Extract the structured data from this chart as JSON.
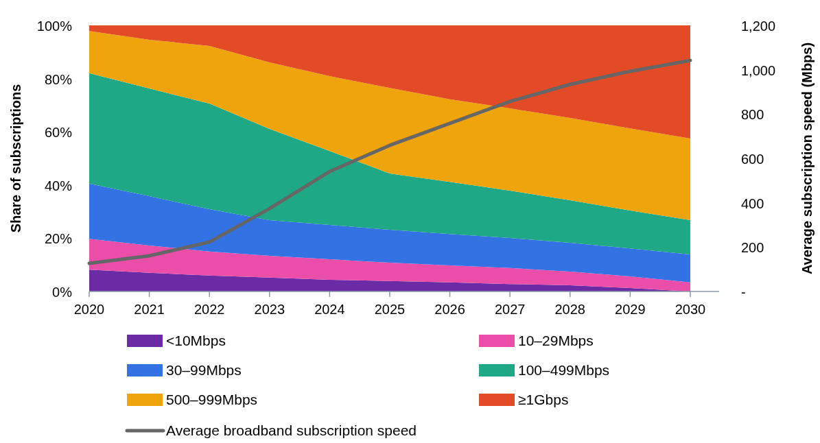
{
  "chart_data": {
    "type": "area",
    "stacked": true,
    "x": [
      2020,
      2021,
      2022,
      2023,
      2024,
      2025,
      2026,
      2027,
      2028,
      2029,
      2030
    ],
    "xlim": [
      2020,
      2030.48
    ],
    "xticks": [
      2020,
      2021,
      2022,
      2023,
      2024,
      2025,
      2026,
      2027,
      2028,
      2029,
      2030
    ],
    "ylabel": "Share of subscriptions",
    "y2label": "Average subscription speed (Mbps)",
    "ylim": [
      0,
      100
    ],
    "yticks": [
      {
        "value": 0,
        "label": "0%"
      },
      {
        "value": 20,
        "label": "20%"
      },
      {
        "value": 40,
        "label": "40%"
      },
      {
        "value": 60,
        "label": "60%"
      },
      {
        "value": 80,
        "label": "80%"
      },
      {
        "value": 100,
        "label": "100%"
      }
    ],
    "y2lim": [
      0,
      1200
    ],
    "y2ticks": [
      {
        "value": 0,
        "label": "-"
      },
      200,
      400,
      600,
      800,
      {
        "value": 1000,
        "label": "1,000"
      },
      {
        "value": 1200,
        "label": "1,200"
      }
    ],
    "grid": false,
    "legend": "bottom",
    "series": [
      {
        "name": "<10Mbps",
        "color": "#6b2ba4",
        "values": [
          8.2,
          7,
          6,
          5.2,
          4.4,
          3.9,
          3.4,
          2.8,
          2.3,
          1.3,
          0
        ]
      },
      {
        "name": "10–29Mbps",
        "color": "#ea4ea9",
        "values": [
          11.6,
          10.3,
          9,
          8.2,
          7.7,
          6.9,
          6.4,
          6,
          5.2,
          4.4,
          3.4
        ]
      },
      {
        "name": "30–99Mbps",
        "color": "#3272e2",
        "values": [
          20.7,
          18.5,
          15.9,
          13.4,
          12.9,
          12.4,
          11.8,
          11.3,
          10.8,
          10.5,
          10.5
        ]
      },
      {
        "name": "100–499Mbps",
        "color": "#1ea886",
        "values": [
          41.5,
          40.5,
          39.7,
          34.3,
          27.8,
          21.1,
          19.6,
          17.8,
          16,
          14.2,
          12.9
        ]
      },
      {
        "name": "500–999Mbps",
        "color": "#eea40a",
        "values": [
          15.9,
          18.3,
          21.7,
          25,
          28.1,
          32.2,
          31,
          30.9,
          30.9,
          30.9,
          30.7
        ]
      },
      {
        "name": "≥1Gbps",
        "color": "#e34b26",
        "values": [
          2.1,
          5.4,
          7.7,
          13.9,
          19.1,
          23.5,
          27.8,
          31.2,
          34.8,
          38.7,
          42.5
        ]
      },
      {
        "name": "Average broadband subscription speed",
        "type": "line",
        "axis": "y2",
        "color": "#666666",
        "values": [
          127,
          161,
          223,
          374,
          541,
          659,
          758,
          857,
          934,
          993,
          1042
        ]
      }
    ]
  }
}
